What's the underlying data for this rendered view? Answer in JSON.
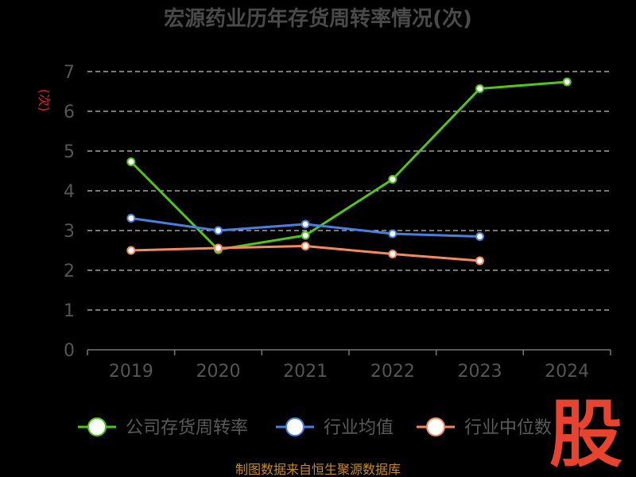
{
  "chart_data": {
    "type": "line",
    "title": "宏源药业历年存货周转率情况(次)",
    "ylabel": "(次)",
    "xlabel": "",
    "categories": [
      "2019",
      "2020",
      "2021",
      "2022",
      "2023",
      "2024"
    ],
    "ylim": [
      0,
      7
    ],
    "yticks": [
      "0",
      "1",
      "2",
      "3",
      "4",
      "5",
      "6",
      "7"
    ],
    "grid": true,
    "legend_position": "bottom",
    "series": [
      {
        "name": "公司存货周转率",
        "color": "#52c41a",
        "values": [
          4.73,
          2.52,
          2.88,
          4.29,
          6.57,
          6.74
        ]
      },
      {
        "name": "行业均值",
        "color": "#4a7fe0",
        "values": [
          3.31,
          3.0,
          3.16,
          2.92,
          2.85,
          null
        ]
      },
      {
        "name": "行业中位数",
        "color": "#f4895f",
        "values": [
          2.5,
          2.56,
          2.61,
          2.41,
          2.24,
          null
        ]
      }
    ]
  },
  "legend": {
    "items": [
      "公司存货周转率",
      "行业均值",
      "行业中位数"
    ]
  },
  "source": "制图数据来自恒生聚源数据库",
  "watermark": "股"
}
